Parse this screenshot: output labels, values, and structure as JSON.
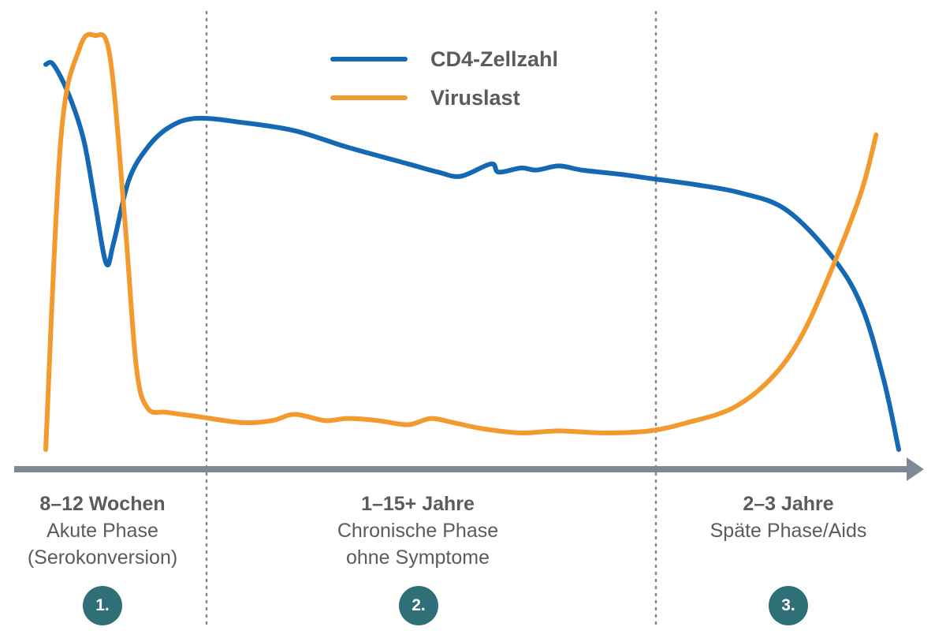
{
  "colors": {
    "cd4": "#1569b4",
    "viral": "#f29a2e",
    "axis": "#7d8a96",
    "divider": "#7d8a96",
    "badge": "#2f6f78",
    "text": "#5b5b5b"
  },
  "chart_data": {
    "type": "line",
    "title": "",
    "xlabel": "",
    "ylabel": "",
    "grid": false,
    "legend_position": "top-center",
    "x_scale": "qualitative (phase-based)",
    "series": [
      {
        "name": "CD4-Zellzahl",
        "color": "#1569b4",
        "relative_level": [
          [
            0.0,
            0.93
          ],
          [
            0.1,
            0.93
          ],
          [
            0.3,
            0.86
          ],
          [
            0.5,
            0.75
          ],
          [
            0.65,
            0.6
          ],
          [
            0.8,
            0.45
          ],
          [
            0.9,
            0.5
          ],
          [
            1.1,
            0.65
          ],
          [
            1.35,
            0.73
          ],
          [
            1.65,
            0.78
          ],
          [
            2.0,
            0.8
          ],
          [
            2.6,
            0.79
          ],
          [
            3.3,
            0.77
          ],
          [
            4.0,
            0.73
          ],
          [
            4.8,
            0.69
          ],
          [
            5.2,
            0.67
          ],
          [
            5.5,
            0.66
          ],
          [
            5.9,
            0.69
          ],
          [
            6.0,
            0.67
          ],
          [
            6.3,
            0.68
          ],
          [
            6.5,
            0.675
          ],
          [
            6.8,
            0.685
          ],
          [
            7.1,
            0.675
          ],
          [
            7.6,
            0.665
          ],
          [
            8.0,
            0.655
          ],
          [
            8.6,
            0.64
          ],
          [
            9.2,
            0.62
          ],
          [
            9.8,
            0.58
          ],
          [
            10.4,
            0.47
          ],
          [
            10.8,
            0.35
          ],
          [
            11.1,
            0.17
          ],
          [
            11.3,
            0.0
          ]
        ]
      },
      {
        "name": "Viruslast",
        "color": "#f29a2e",
        "relative_level": [
          [
            0.0,
            0.0
          ],
          [
            0.2,
            0.75
          ],
          [
            0.45,
            0.97
          ],
          [
            0.65,
            1.0
          ],
          [
            0.85,
            0.95
          ],
          [
            1.05,
            0.55
          ],
          [
            1.2,
            0.2
          ],
          [
            1.35,
            0.1
          ],
          [
            1.6,
            0.09
          ],
          [
            2.0,
            0.08
          ],
          [
            2.6,
            0.065
          ],
          [
            3.0,
            0.07
          ],
          [
            3.3,
            0.085
          ],
          [
            3.7,
            0.07
          ],
          [
            4.0,
            0.075
          ],
          [
            4.4,
            0.07
          ],
          [
            4.8,
            0.06
          ],
          [
            5.1,
            0.075
          ],
          [
            5.4,
            0.065
          ],
          [
            5.8,
            0.05
          ],
          [
            6.3,
            0.04
          ],
          [
            6.8,
            0.045
          ],
          [
            7.4,
            0.04
          ],
          [
            8.0,
            0.045
          ],
          [
            8.5,
            0.065
          ],
          [
            9.1,
            0.1
          ],
          [
            9.6,
            0.17
          ],
          [
            10.0,
            0.27
          ],
          [
            10.4,
            0.43
          ],
          [
            10.8,
            0.62
          ],
          [
            11.0,
            0.76
          ]
        ]
      }
    ],
    "legend": [
      "CD4-Zellzahl",
      "Viruslast"
    ]
  },
  "phases": [
    {
      "duration": "8–12 Wochen",
      "line1": "Akute Phase",
      "line2": "(Serokonversion)",
      "badge": "1."
    },
    {
      "duration": "1–15+ Jahre",
      "line1": "Chronische Phase",
      "line2": "ohne Symptome",
      "badge": "2."
    },
    {
      "duration": "2–3 Jahre",
      "line1": "Späte Phase/Aids",
      "line2": "",
      "badge": "3."
    }
  ]
}
